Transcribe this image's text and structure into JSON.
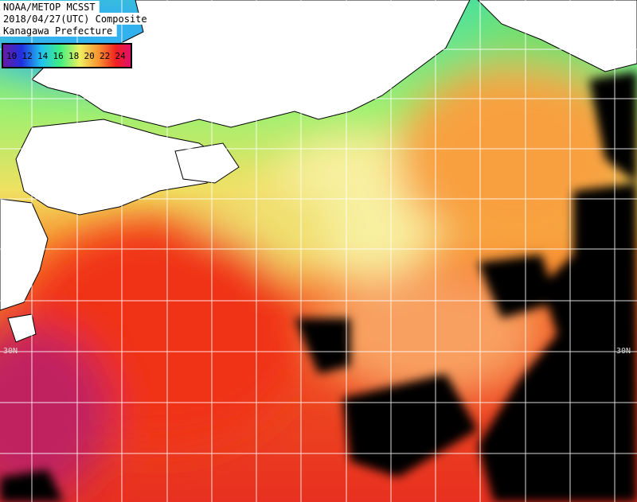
{
  "header": {
    "lines": [
      "NOAA/METOP MCSST",
      "2018/04/27(UTC) Composite",
      "Kanagawa Prefecture"
    ]
  },
  "legend": {
    "labels": [
      10,
      12,
      14,
      16,
      18,
      20,
      22,
      24
    ]
  },
  "grid_labels": {
    "left": "30N",
    "right": "30N"
  }
}
